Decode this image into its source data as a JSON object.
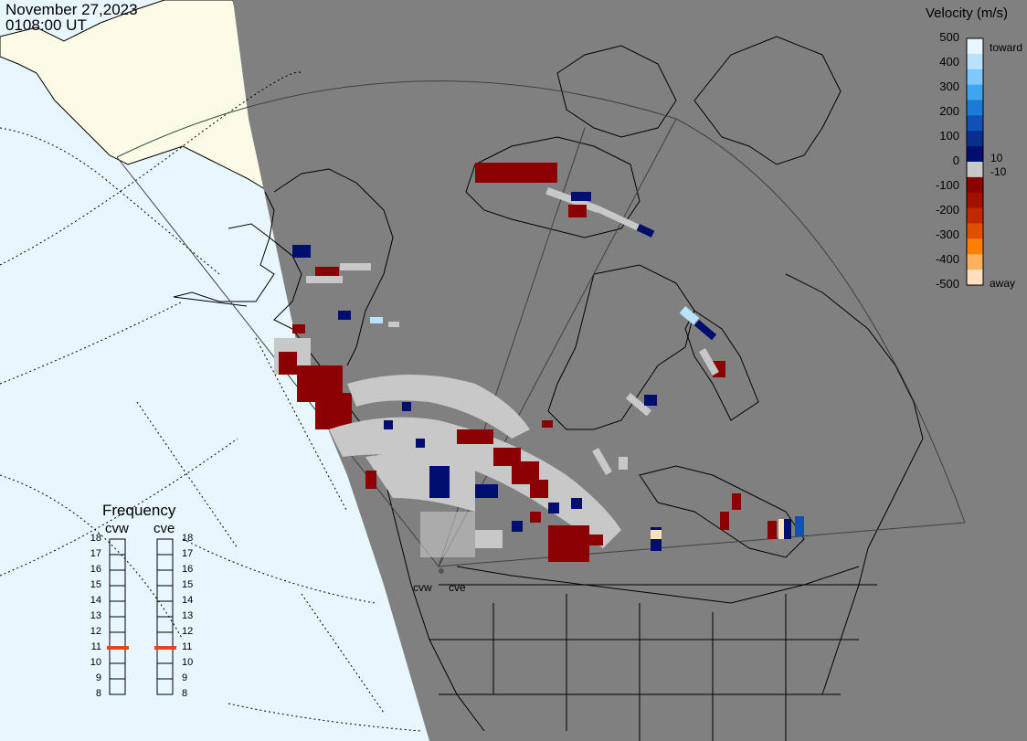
{
  "header": {
    "date": "November 27,2023",
    "time": "0108:00 UT"
  },
  "velocity_scale": {
    "title": "Velocity (m/s)",
    "labels": [
      "500",
      "400",
      "300",
      "200",
      "100",
      "0",
      "-100",
      "-200",
      "-300",
      "-400",
      "-500"
    ],
    "extra_labels": {
      "pos_threshold": "10",
      "neg_threshold": "-10"
    },
    "toward_label": "toward",
    "away_label": "away",
    "colors_top_to_bottom": [
      "#e8f6ff",
      "#b8e2ff",
      "#7cc8ff",
      "#3ea6f0",
      "#1e7ad8",
      "#1050b8",
      "#0a2e90",
      "#000e70",
      "#c8c8c8",
      "#8b0000",
      "#a41000",
      "#c02800",
      "#e05000",
      "#ff8000",
      "#ffb060",
      "#ffe0c0"
    ]
  },
  "frequency": {
    "title": "Frequency",
    "radars": [
      "cvw",
      "cve"
    ],
    "ticks": [
      "18",
      "17",
      "16",
      "15",
      "14",
      "13",
      "12",
      "11",
      "10",
      "9",
      "8"
    ],
    "current_mhz": {
      "cvw": 11,
      "cve": 11
    },
    "marker_color": "#e04a10"
  },
  "stations": {
    "cvw": "cvw",
    "cve": "cve"
  },
  "colors": {
    "ocean": "#e8f6ff",
    "night_land": "#808080",
    "day_land": "#fbfbe8",
    "coastline": "#000000",
    "gridline": "#000000",
    "fov_boundary": "#404040"
  }
}
